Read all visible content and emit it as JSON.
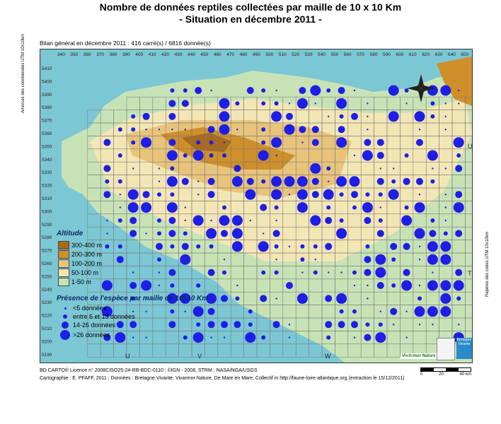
{
  "title_line1": "Nombre de données reptiles collectées par maille de 10 x 10 Km",
  "title_line2": "- Situation en décembre 2011 -",
  "summary": "Bilan général en décembre 2011 :  416 carré(s) / 6816 donnée(s)",
  "x_ticks": [
    "340",
    "350",
    "360",
    "370",
    "380",
    "390",
    "400",
    "410",
    "420",
    "430",
    "440",
    "450",
    "460",
    "470",
    "480",
    "490",
    "500",
    "510",
    "520",
    "530",
    "540",
    "550",
    "560",
    "570",
    "580",
    "590",
    "600",
    "610",
    "620",
    "630",
    "640",
    "650"
  ],
  "y_ticks": [
    "5410",
    "5400",
    "5390",
    "5380",
    "5370",
    "5360",
    "5350",
    "5340",
    "5330",
    "5320",
    "5310",
    "5300",
    "5290",
    "5280",
    "5270",
    "5260",
    "5250",
    "5240",
    "5230",
    "5220",
    "5210",
    "5200",
    "5190"
  ],
  "zones": [
    "U",
    "V",
    "W",
    "U",
    "T"
  ],
  "left_axis_label": "Amorces des coordonnées UTM 10x10km",
  "right_axis_label": "Repères des codes UTM 10x10km",
  "legend_altitude": {
    "title": "Altitude",
    "items": [
      {
        "label": "300-400 m",
        "color": "#a86a1c"
      },
      {
        "label": "200-300 m",
        "color": "#cf8f2a"
      },
      {
        "label": "100-200 m",
        "color": "#e8c47a"
      },
      {
        "label": "50-100 m",
        "color": "#f3e6b5"
      },
      {
        "label": "1-50 m",
        "color": "#c7e3b6"
      }
    ]
  },
  "legend_presence": {
    "title": "Présence de l'espèce par maille de 10x10 Km",
    "items": [
      {
        "label": "<5 données"
      },
      {
        "label": "entre 6 et 13 données"
      },
      {
        "label": "14-26 données"
      },
      {
        "label": ">26 données"
      }
    ]
  },
  "credits_line1": "BD CARTO® Licence n° 2008CISO25-24-RB-BDC-0110 ; ©IGN - 2008, STRM ; NASA/NGA/USGS",
  "credits_line2": "Cartographie : E. PFAFF, 2011 ; Données : Bretagne Vivante, Vivarmor Nature, De Mare en Mare, Collectif in http://faune-loire-atlantique.org (extraction le 15/12/2011)",
  "scale": {
    "labels": [
      "0",
      "20",
      "40 km"
    ]
  },
  "logos": {
    "vivarmor": "VivArmor Nature",
    "bretagne": "Bretagne Vivante"
  },
  "colors": {
    "sea": "#7cc7d4",
    "land": "#c7e3b6",
    "dot": "#1e1ee6"
  }
}
